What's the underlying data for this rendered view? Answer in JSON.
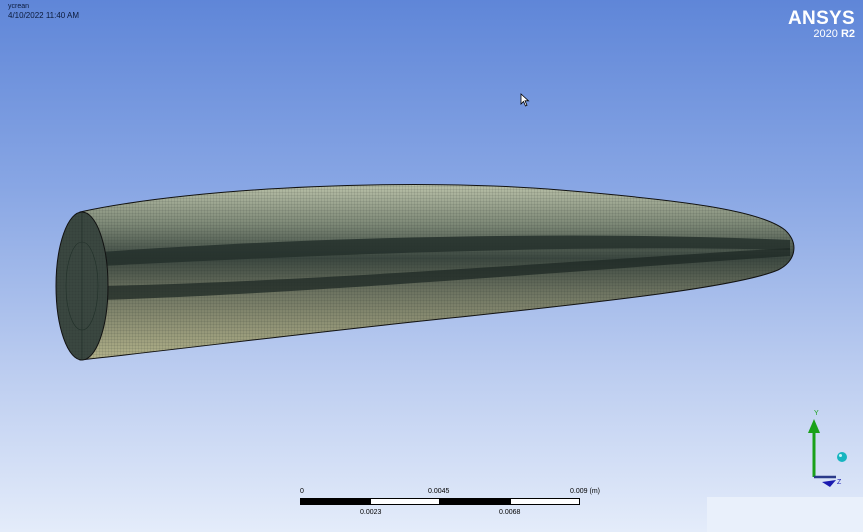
{
  "viewport": {
    "document_name": "ycrean",
    "timestamp": "4/10/2022 11:40 AM",
    "brand": {
      "name": "ANSYS",
      "version_year": "2020",
      "version_release": "R2"
    }
  },
  "scale_bar": {
    "unit": "(m)",
    "top_labels": [
      "0",
      "0.0045",
      "0.009"
    ],
    "bottom_labels": [
      "0.0023",
      "0.0068"
    ]
  },
  "triad": {
    "y_label": "Y",
    "z_label": "Z"
  },
  "colors": {
    "background_top": "#5f86d8",
    "background_bottom": "#e4ecfa",
    "mesh_fill": "#8a8e6e",
    "mesh_dark": "#3f4a42",
    "mesh_line": "#1c2a24",
    "axis_y": "#1aa11a",
    "axis_z": "#1a1ab0",
    "axis_sphere": "#17b5c0"
  },
  "icons": [
    "mouse-cursor-icon",
    "axis-triad-icon"
  ]
}
